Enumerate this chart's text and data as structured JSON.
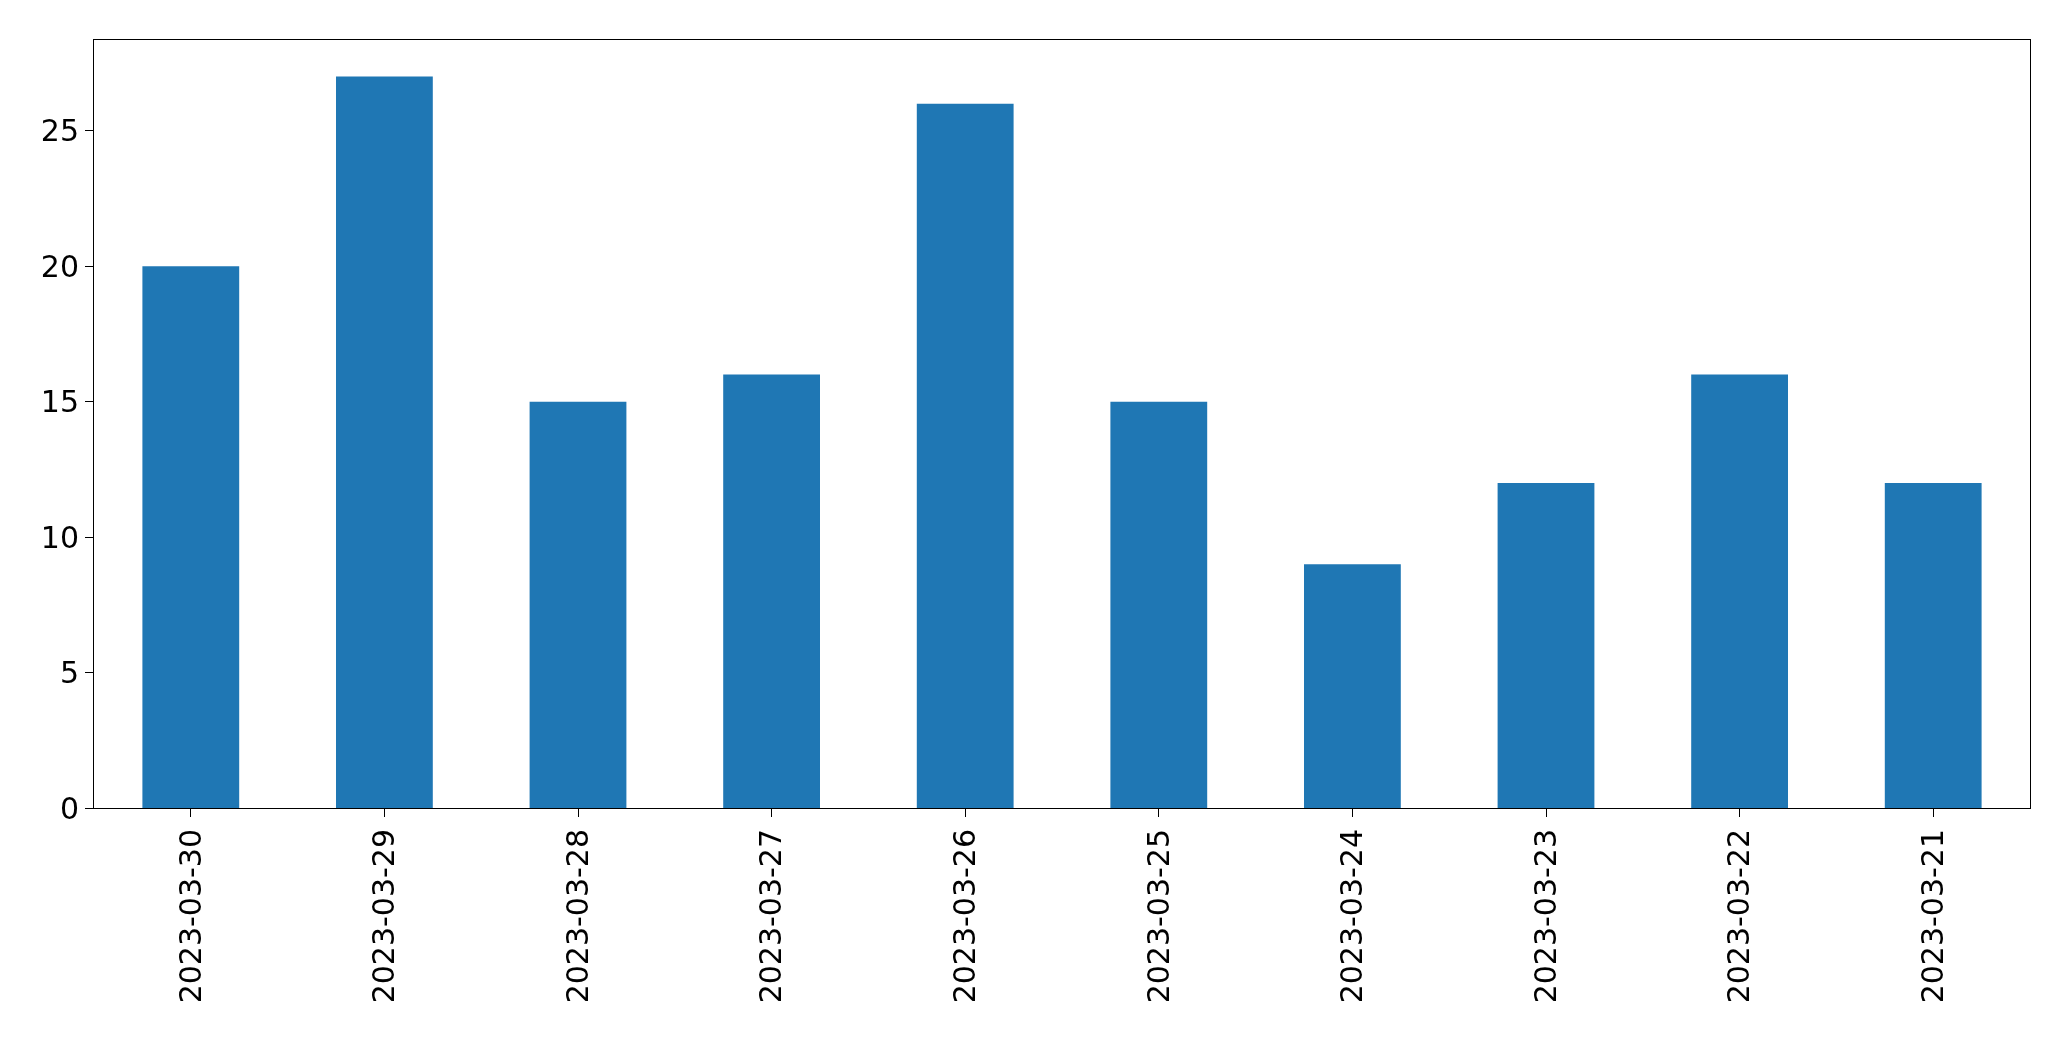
{
  "chart_data": {
    "type": "bar",
    "categories": [
      "2023-03-30",
      "2023-03-29",
      "2023-03-28",
      "2023-03-27",
      "2023-03-26",
      "2023-03-25",
      "2023-03-24",
      "2023-03-23",
      "2023-03-22",
      "2023-03-21"
    ],
    "values": [
      20,
      27,
      15,
      16,
      26,
      15,
      9,
      12,
      16,
      12
    ],
    "color": "#1f77b4",
    "ylim": [
      0,
      28.35
    ],
    "yticks": [
      0,
      5,
      10,
      15,
      20,
      25
    ]
  }
}
